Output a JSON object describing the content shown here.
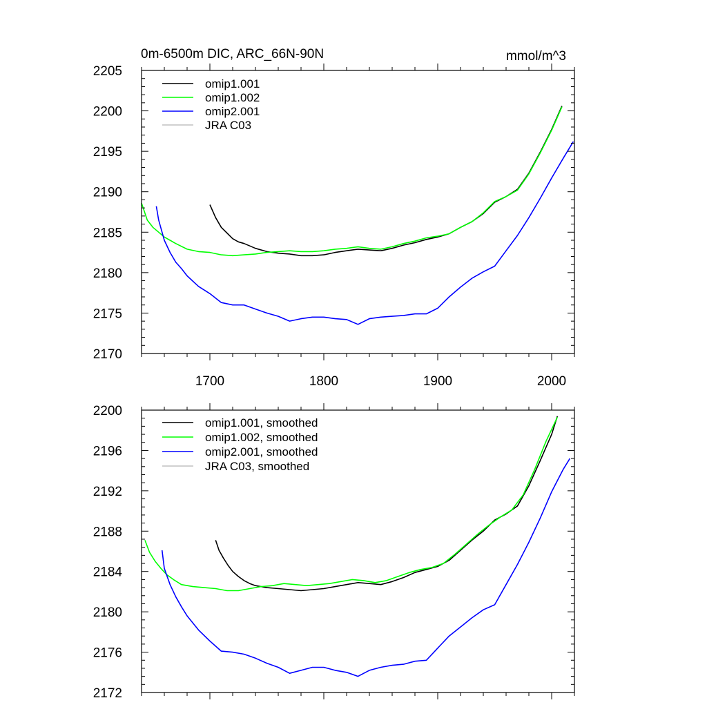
{
  "chart_data": [
    {
      "type": "line",
      "title": "0m-6500m DIC, ARC_66N-90N",
      "units": "mmol/m^3",
      "xlim": [
        1640,
        2020
      ],
      "ylim": [
        2170,
        2205
      ],
      "xticks": [
        1700,
        1800,
        1900,
        2000
      ],
      "yticks": [
        2170,
        2175,
        2180,
        2185,
        2190,
        2195,
        2200,
        2205
      ],
      "legend_position": "top-left",
      "series": [
        {
          "name": "omip1.001",
          "color": "#000000",
          "x": [
            1700,
            1705,
            1710,
            1715,
            1720,
            1725,
            1730,
            1735,
            1740,
            1750,
            1760,
            1770,
            1780,
            1790,
            1800,
            1810,
            1820,
            1830,
            1840,
            1850,
            1860,
            1870,
            1880,
            1890,
            1900,
            1910,
            1920,
            1930,
            1940,
            1950,
            1960,
            1970,
            1980,
            1990,
            2000,
            2009
          ],
          "y": [
            2188.4,
            2186.8,
            2185.6,
            2184.9,
            2184.2,
            2183.8,
            2183.6,
            2183.3,
            2183.0,
            2182.6,
            2182.4,
            2182.3,
            2182.1,
            2182.1,
            2182.2,
            2182.5,
            2182.7,
            2182.9,
            2182.8,
            2182.7,
            2183.0,
            2183.4,
            2183.7,
            2184.1,
            2184.4,
            2184.8,
            2185.6,
            2186.3,
            2187.3,
            2188.7,
            2189.4,
            2190.3,
            2192.3,
            2194.9,
            2197.7,
            2200.6
          ]
        },
        {
          "name": "omip1.002",
          "color": "#00ff00",
          "x": [
            1640,
            1645,
            1650,
            1655,
            1660,
            1665,
            1670,
            1680,
            1690,
            1700,
            1710,
            1720,
            1730,
            1740,
            1750,
            1760,
            1770,
            1780,
            1790,
            1800,
            1810,
            1820,
            1830,
            1840,
            1850,
            1860,
            1870,
            1880,
            1890,
            1900,
            1910,
            1920,
            1930,
            1940,
            1950,
            1960,
            1970,
            1980,
            1990,
            2000,
            2009
          ],
          "y": [
            2188.6,
            2186.5,
            2185.6,
            2185.0,
            2184.4,
            2184.0,
            2183.6,
            2182.9,
            2182.6,
            2182.5,
            2182.2,
            2182.1,
            2182.2,
            2182.3,
            2182.5,
            2182.6,
            2182.7,
            2182.6,
            2182.6,
            2182.7,
            2182.9,
            2183.0,
            2183.2,
            2183.0,
            2182.9,
            2183.2,
            2183.6,
            2183.9,
            2184.3,
            2184.5,
            2184.8,
            2185.6,
            2186.3,
            2187.4,
            2188.8,
            2189.4,
            2190.2,
            2192.2,
            2194.8,
            2197.6,
            2200.5
          ]
        },
        {
          "name": "omip2.001",
          "color": "#0000ff",
          "x": [
            1653,
            1655,
            1660,
            1665,
            1670,
            1675,
            1680,
            1690,
            1700,
            1710,
            1720,
            1730,
            1740,
            1750,
            1760,
            1770,
            1780,
            1790,
            1800,
            1810,
            1820,
            1830,
            1840,
            1850,
            1860,
            1870,
            1880,
            1890,
            1900,
            1910,
            1920,
            1930,
            1940,
            1950,
            1960,
            1970,
            1980,
            1990,
            2000,
            2010,
            2019
          ],
          "y": [
            2188.2,
            2186.5,
            2184.0,
            2182.5,
            2181.3,
            2180.5,
            2179.6,
            2178.3,
            2177.4,
            2176.3,
            2176.0,
            2176.0,
            2175.5,
            2175.0,
            2174.6,
            2174.0,
            2174.3,
            2174.5,
            2174.5,
            2174.3,
            2174.2,
            2173.6,
            2174.3,
            2174.5,
            2174.6,
            2174.7,
            2174.9,
            2174.9,
            2175.6,
            2177.0,
            2178.2,
            2179.3,
            2180.1,
            2180.8,
            2182.7,
            2184.6,
            2186.8,
            2189.2,
            2191.7,
            2194.1,
            2196.2
          ]
        },
        {
          "name": "JRA C03",
          "color": "#c0c0c0",
          "x": [],
          "y": []
        }
      ]
    },
    {
      "type": "line",
      "xlim": [
        1640,
        2020
      ],
      "ylim": [
        2172,
        2200
      ],
      "xticks": [
        1700,
        1800,
        1900,
        2000
      ],
      "yticks": [
        2172,
        2176,
        2180,
        2184,
        2188,
        2192,
        2196,
        2200
      ],
      "legend_position": "top-left",
      "series": [
        {
          "name": "omip1.001, smoothed",
          "color": "#000000",
          "x": [
            1705,
            1708,
            1712,
            1716,
            1720,
            1725,
            1730,
            1735,
            1740,
            1750,
            1760,
            1770,
            1780,
            1790,
            1800,
            1810,
            1820,
            1830,
            1840,
            1850,
            1860,
            1870,
            1880,
            1890,
            1900,
            1910,
            1920,
            1930,
            1940,
            1950,
            1960,
            1970,
            1980,
            1990,
            2000,
            2005
          ],
          "y": [
            2187.1,
            2186.1,
            2185.3,
            2184.6,
            2184.0,
            2183.5,
            2183.1,
            2182.8,
            2182.6,
            2182.4,
            2182.3,
            2182.2,
            2182.1,
            2182.2,
            2182.3,
            2182.5,
            2182.7,
            2182.9,
            2182.8,
            2182.7,
            2183.0,
            2183.4,
            2183.9,
            2184.2,
            2184.5,
            2185.1,
            2186.1,
            2187.1,
            2188.0,
            2189.1,
            2189.7,
            2190.5,
            2192.5,
            2195.0,
            2197.6,
            2199.4
          ]
        },
        {
          "name": "omip1.002, smoothed",
          "color": "#00ff00",
          "x": [
            1643,
            1647,
            1652,
            1657,
            1662,
            1668,
            1675,
            1685,
            1695,
            1705,
            1715,
            1725,
            1735,
            1745,
            1755,
            1765,
            1775,
            1785,
            1795,
            1805,
            1815,
            1825,
            1835,
            1845,
            1855,
            1865,
            1875,
            1885,
            1895,
            1905,
            1915,
            1925,
            1935,
            1945,
            1955,
            1965,
            1975,
            1985,
            1995,
            2005
          ],
          "y": [
            2187.1,
            2185.9,
            2185.0,
            2184.3,
            2183.7,
            2183.2,
            2182.7,
            2182.5,
            2182.4,
            2182.3,
            2182.1,
            2182.1,
            2182.3,
            2182.5,
            2182.6,
            2182.8,
            2182.7,
            2182.6,
            2182.7,
            2182.8,
            2183.0,
            2183.2,
            2183.1,
            2182.9,
            2183.1,
            2183.5,
            2183.9,
            2184.2,
            2184.4,
            2184.8,
            2185.7,
            2186.7,
            2187.7,
            2188.6,
            2189.4,
            2190.1,
            2191.6,
            2194.1,
            2196.9,
            2199.3
          ]
        },
        {
          "name": "omip2.001, smoothed",
          "color": "#0000ff",
          "x": [
            1658,
            1660,
            1665,
            1670,
            1675,
            1680,
            1690,
            1700,
            1710,
            1720,
            1730,
            1740,
            1750,
            1760,
            1770,
            1780,
            1790,
            1800,
            1810,
            1820,
            1830,
            1840,
            1850,
            1860,
            1870,
            1880,
            1890,
            1900,
            1910,
            1920,
            1930,
            1940,
            1950,
            1960,
            1970,
            1980,
            1990,
            2000,
            2010,
            2016
          ],
          "y": [
            2186.1,
            2184.3,
            2182.7,
            2181.5,
            2180.5,
            2179.6,
            2178.2,
            2177.1,
            2176.1,
            2176.0,
            2175.8,
            2175.4,
            2174.9,
            2174.5,
            2173.9,
            2174.2,
            2174.5,
            2174.5,
            2174.2,
            2174.0,
            2173.6,
            2174.2,
            2174.5,
            2174.7,
            2174.8,
            2175.1,
            2175.2,
            2176.4,
            2177.6,
            2178.5,
            2179.4,
            2180.2,
            2180.7,
            2182.7,
            2184.7,
            2186.9,
            2189.3,
            2191.9,
            2194.1,
            2195.2
          ]
        },
        {
          "name": "JRA C03, smoothed",
          "color": "#c0c0c0",
          "x": [],
          "y": []
        }
      ]
    }
  ]
}
